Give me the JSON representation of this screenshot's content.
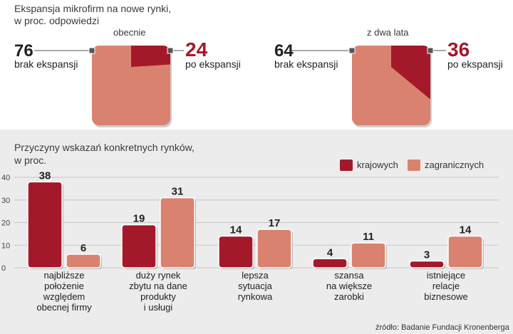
{
  "header": {
    "title_line1": "Ekspansja mikrofirm na nowe rynki,",
    "title_line2": "w proc. odpowiedzi"
  },
  "pies": [
    {
      "label": "obecnie",
      "left_value": "76",
      "left_caption": "brak ekspansji",
      "right_value": "24",
      "right_caption": "po ekspansji"
    },
    {
      "label": "z dwa lata",
      "left_value": "64",
      "left_caption": "brak ekspansji",
      "right_value": "36",
      "right_caption": "po ekspansji"
    }
  ],
  "bar_header": {
    "title_line1": "Przyczyny wskazań konkretnych rynków,",
    "title_line2": "w proc."
  },
  "legend": {
    "items": [
      "krajowych",
      "zagranicznych"
    ]
  },
  "source": "źródło: Badanie Fundacji Kronenberga",
  "colors": {
    "domestic": "#a3192a",
    "foreign": "#d9826f",
    "panel": "#ececec"
  },
  "chart_data": [
    {
      "type": "pie",
      "label": "obecnie",
      "slices": [
        {
          "name": "brak ekspansji",
          "value": 76
        },
        {
          "name": "po ekspansji",
          "value": 24
        }
      ]
    },
    {
      "type": "pie",
      "label": "z dwa lata",
      "slices": [
        {
          "name": "brak ekspansji",
          "value": 64
        },
        {
          "name": "po ekspansji",
          "value": 36
        }
      ]
    },
    {
      "type": "bar",
      "title": "Przyczyny wskazań konkretnych rynków, w proc.",
      "categories": [
        [
          "najbliższe",
          "położenie",
          "względem",
          "obecnej firmy"
        ],
        [
          "duży rynek",
          "zbytu na dane",
          "produkty",
          "i usługi"
        ],
        [
          "lepsza",
          "sytuacja",
          "rynkowa"
        ],
        [
          "szansa",
          "na większe",
          "zarobki"
        ],
        [
          "istniejące",
          "relacje",
          "biznesowe"
        ]
      ],
      "series": [
        {
          "name": "krajowych",
          "values": [
            38,
            19,
            14,
            4,
            3
          ]
        },
        {
          "name": "zagranicznych",
          "values": [
            6,
            31,
            17,
            11,
            14
          ]
        }
      ],
      "yticks": [
        0,
        10,
        20,
        30,
        40
      ],
      "ylim": [
        0,
        40
      ],
      "grid": true,
      "legend": "top-right"
    }
  ]
}
